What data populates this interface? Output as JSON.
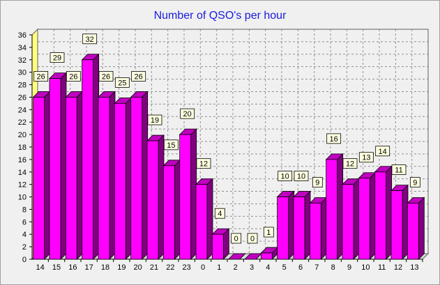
{
  "chart_data": {
    "type": "bar",
    "title": "Number of QSO's per hour",
    "xlabel": "",
    "ylabel": "",
    "categories": [
      "14",
      "15",
      "16",
      "17",
      "18",
      "19",
      "20",
      "21",
      "22",
      "23",
      "0",
      "1",
      "2",
      "3",
      "4",
      "5",
      "6",
      "7",
      "8",
      "9",
      "10",
      "11",
      "12",
      "13"
    ],
    "values": [
      26,
      29,
      26,
      32,
      26,
      25,
      26,
      19,
      15,
      20,
      12,
      4,
      0,
      0,
      1,
      10,
      10,
      9,
      16,
      12,
      13,
      14,
      11,
      9
    ],
    "ylim": [
      0,
      36
    ],
    "yticks": [
      0,
      2,
      4,
      6,
      8,
      10,
      12,
      14,
      16,
      18,
      20,
      22,
      24,
      26,
      28,
      30,
      32,
      34,
      36
    ],
    "grid": true,
    "legend": "none",
    "data_labels": true,
    "style": "3d-bar",
    "colors": {
      "bar_front": "#ff00ff",
      "bar_side": "#800080",
      "bar_top": "#c000c0",
      "wall": "#ffff80",
      "plot_bg": "#f0f0f0",
      "title": "#1a1adc",
      "label_bg": "#ffffe1"
    }
  }
}
